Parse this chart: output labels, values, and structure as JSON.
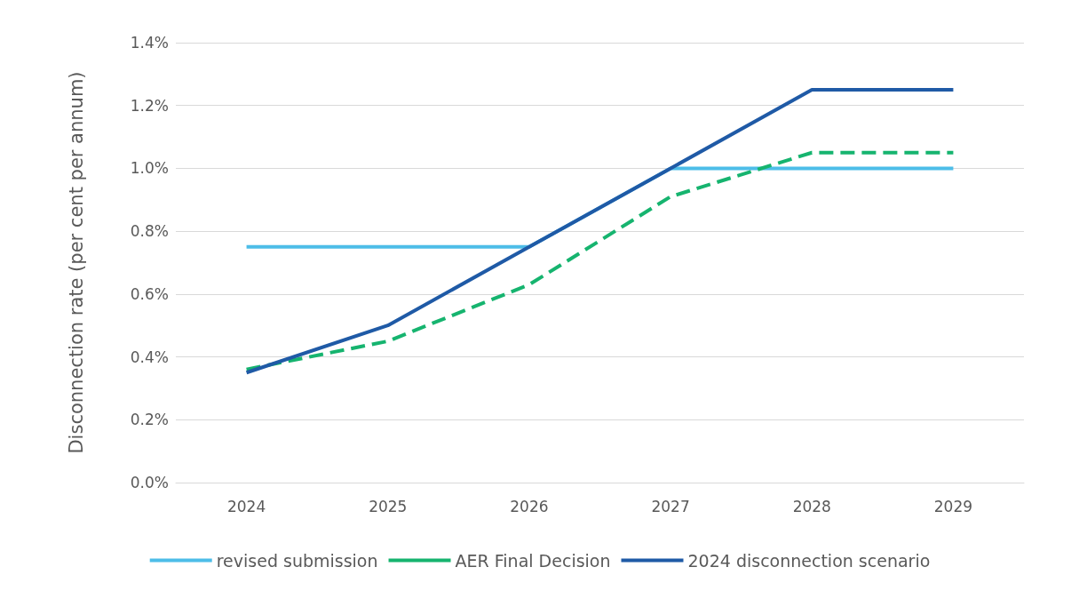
{
  "chart_data": {
    "type": "line",
    "ylabel": "Disconnection rate (per cent per annum)",
    "categories": [
      "2024",
      "2025",
      "2026",
      "2027",
      "2028",
      "2029"
    ],
    "series": [
      {
        "name": "revised submission",
        "color": "#4dbde8",
        "line_style": "solid",
        "values": [
          0.75,
          0.75,
          0.75,
          1.0,
          1.0,
          1.0
        ]
      },
      {
        "name": "AER Final Decision",
        "color": "#16b46f",
        "line_style": "dashed",
        "values": [
          0.36,
          0.45,
          0.63,
          0.91,
          1.05,
          1.05
        ]
      },
      {
        "name": "2024 disconnection scenario",
        "color": "#1f5aa6",
        "line_style": "solid",
        "values": [
          0.35,
          0.5,
          0.75,
          1.0,
          1.25,
          1.25
        ]
      }
    ],
    "ylim": [
      0,
      1.4
    ],
    "yticks": [
      {
        "value": 0,
        "label": "0.0%"
      },
      {
        "value": 0.2,
        "label": "0.2%"
      },
      {
        "value": 0.4,
        "label": "0.4%"
      },
      {
        "value": 0.6,
        "label": "0.6%"
      },
      {
        "value": 0.8,
        "label": "0.8%"
      },
      {
        "value": 1.0,
        "label": "1.0%"
      },
      {
        "value": 1.2,
        "label": "1.2%"
      },
      {
        "value": 1.4,
        "label": "1.4%"
      }
    ],
    "grid": "y",
    "legend": "bottom",
    "marker": "none"
  }
}
